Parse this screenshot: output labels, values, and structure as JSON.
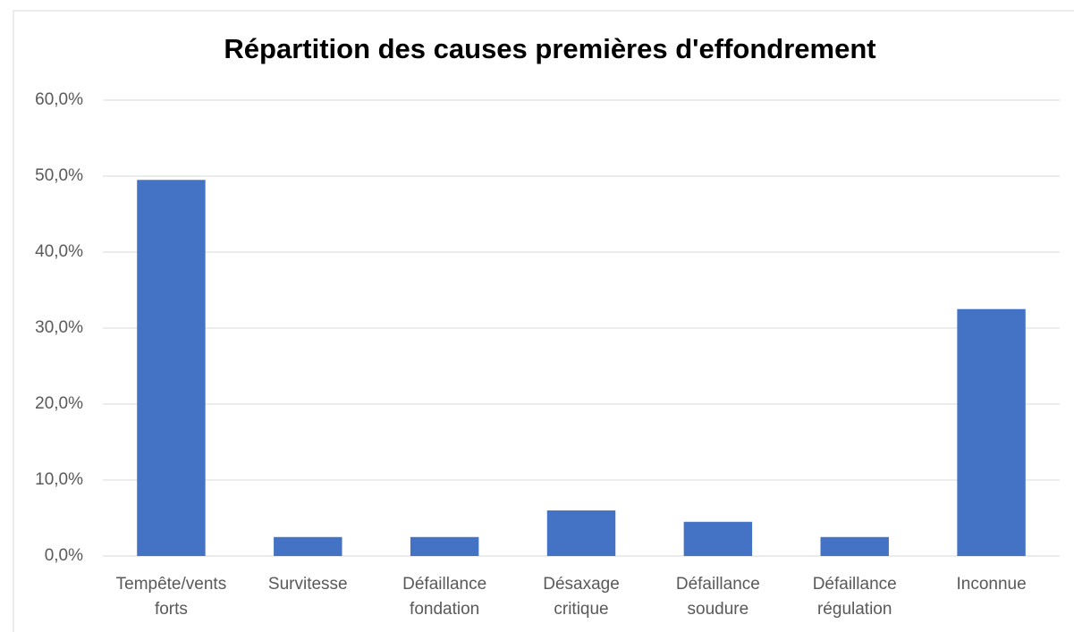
{
  "chart_data": {
    "type": "bar",
    "title": "Répartition des causes premières d'effondrement",
    "categories": [
      "Tempête/vents forts",
      "Survitesse",
      "Défaillance fondation",
      "Désaxage critique",
      "Défaillance soudure",
      "Défaillance régulation",
      "Inconnue"
    ],
    "values": [
      49.5,
      2.5,
      2.5,
      6.0,
      4.5,
      2.5,
      32.5
    ],
    "color": "#4472c4",
    "ylim": [
      0,
      60
    ],
    "yticks": [
      {
        "value": 0,
        "label": "0,0%"
      },
      {
        "value": 10,
        "label": "10,0%"
      },
      {
        "value": 20,
        "label": "20,0%"
      },
      {
        "value": 30,
        "label": "30,0%"
      },
      {
        "value": 40,
        "label": "40,0%"
      },
      {
        "value": 50,
        "label": "50,0%"
      },
      {
        "value": 60,
        "label": "60,0%"
      }
    ],
    "grid": true
  }
}
